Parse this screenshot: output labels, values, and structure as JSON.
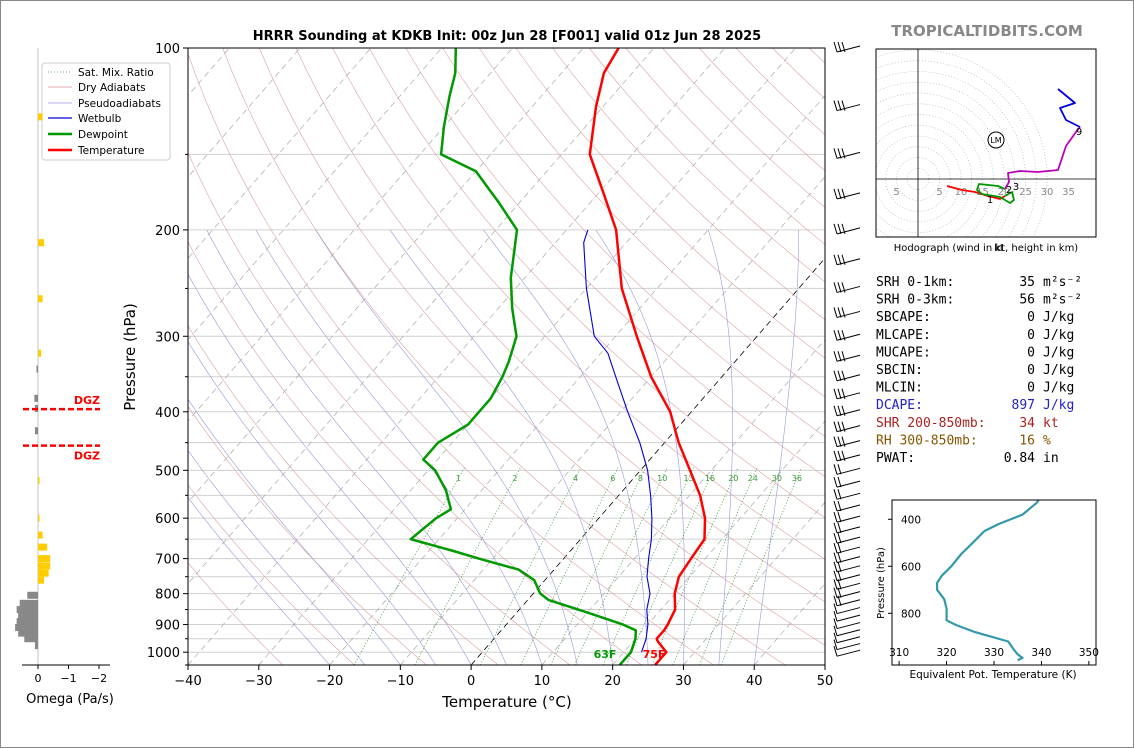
{
  "title": "HRRR Sounding at KDKB Init: 00z Jun 28 [F001] valid 01z Jun 28 2025",
  "brand": "TROPICALTIDBITS.COM",
  "chart_data": [
    {
      "type": "line",
      "name": "skew-t",
      "xlabel": "Temperature (°C)",
      "ylabel": "Pressure (hPa)",
      "xlim": [
        -40,
        50
      ],
      "ylim": [
        1050,
        100
      ],
      "yscale": "log",
      "skew": true,
      "x_ticks": [
        "−40",
        "−30",
        "−20",
        "−10",
        "0",
        "10",
        "20",
        "30",
        "40",
        "50"
      ],
      "y_ticks": [
        "100",
        "200",
        "300",
        "400",
        "500",
        "600",
        "700",
        "800",
        "900",
        "1000"
      ],
      "legend_position": "top-left",
      "legend": [
        "Sat. Mix. Ratio",
        "Dry Adiabats",
        "Pseudoadiabats",
        "Wetbulb",
        "Dewpoint",
        "Temperature"
      ],
      "mixing_ratio_labels": [
        "1",
        "2",
        "4",
        "6",
        "8",
        "10",
        "13",
        "16",
        "20",
        "24",
        "30",
        "36"
      ],
      "series": [
        {
          "name": "Temperature",
          "color": "#ff0000",
          "points": [
            [
              1050,
              26
            ],
            [
              1000,
              26
            ],
            [
              960,
              23.5
            ],
            [
              950,
              23
            ],
            [
              920,
              23
            ],
            [
              900,
              22.8
            ],
            [
              850,
              22
            ],
            [
              800,
              20
            ],
            [
              750,
              18.5
            ],
            [
              700,
              18
            ],
            [
              650,
              17.5
            ],
            [
              600,
              15
            ],
            [
              550,
              11.5
            ],
            [
              500,
              7
            ],
            [
              450,
              2
            ],
            [
              400,
              -3
            ],
            [
              350,
              -10
            ],
            [
              300,
              -17
            ],
            [
              250,
              -25
            ],
            [
              200,
              -33
            ],
            [
              175,
              -39
            ],
            [
              150,
              -46
            ],
            [
              125,
              -51
            ],
            [
              110,
              -54
            ],
            [
              100,
              -55
            ]
          ]
        },
        {
          "name": "Dewpoint",
          "color": "#009900",
          "points": [
            [
              1050,
              21
            ],
            [
              1000,
              21
            ],
            [
              950,
              20
            ],
            [
              920,
              19
            ],
            [
              900,
              16.5
            ],
            [
              860,
              10
            ],
            [
              820,
              3
            ],
            [
              800,
              1
            ],
            [
              760,
              -1.5
            ],
            [
              730,
              -5
            ],
            [
              700,
              -12
            ],
            [
              680,
              -16.5
            ],
            [
              650,
              -24
            ],
            [
              600,
              -23
            ],
            [
              580,
              -22
            ],
            [
              540,
              -25
            ],
            [
              500,
              -29
            ],
            [
              480,
              -32
            ],
            [
              450,
              -32
            ],
            [
              420,
              -30
            ],
            [
              380,
              -30
            ],
            [
              350,
              -31
            ],
            [
              330,
              -32
            ],
            [
              300,
              -34
            ],
            [
              270,
              -38
            ],
            [
              240,
              -42
            ],
            [
              200,
              -47
            ],
            [
              180,
              -53
            ],
            [
              160,
              -60
            ],
            [
              150,
              -67
            ],
            [
              135,
              -70
            ],
            [
              120,
              -73
            ],
            [
              110,
              -75
            ],
            [
              100,
              -78
            ]
          ]
        },
        {
          "name": "Wetbulb",
          "color": "#0000dd",
          "points": [
            [
              1000,
              22.5
            ],
            [
              950,
              21.5
            ],
            [
              900,
              20
            ],
            [
              850,
              18
            ],
            [
              800,
              16.5
            ],
            [
              750,
              14
            ],
            [
              700,
              12
            ],
            [
              650,
              10
            ],
            [
              600,
              7.5
            ],
            [
              550,
              4.5
            ],
            [
              500,
              1
            ],
            [
              450,
              -3.5
            ],
            [
              400,
              -9
            ],
            [
              350,
              -15
            ],
            [
              320,
              -19
            ],
            [
              300,
              -23
            ],
            [
              250,
              -30
            ],
            [
              210,
              -36
            ],
            [
              200,
              -37
            ]
          ]
        }
      ],
      "surface_labels": {
        "temperature": "75F",
        "dewpoint": "63F"
      }
    },
    {
      "type": "hodograph",
      "caption": "Hodograph (wind in kt, height in km)",
      "unit": "kt",
      "ring_labels": [
        "5",
        "5",
        "10",
        "15",
        "20",
        "25",
        "30",
        "35"
      ],
      "height_labels": [
        "1",
        "2",
        "3",
        "9"
      ],
      "storm_motion_label": "LM"
    },
    {
      "type": "line",
      "name": "theta-e",
      "xlabel": "Equivalent Pot. Temperature (K)",
      "ylabel": "Pressure (hPa)",
      "xlim": [
        310,
        350
      ],
      "x_ticks": [
        "310",
        "320",
        "330",
        "340",
        "350"
      ],
      "ylim": [
        1000,
        300
      ],
      "y_ticks": [
        "400",
        "600",
        "800"
      ],
      "series": [
        {
          "name": "theta-e",
          "color": "#3399aa",
          "points": [
            [
              1000,
              335
            ],
            [
              990,
              336
            ],
            [
              975,
              335
            ],
            [
              950,
              334
            ],
            [
              920,
              333
            ],
            [
              880,
              326
            ],
            [
              850,
              322
            ],
            [
              830,
              320
            ],
            [
              810,
              320
            ],
            [
              780,
              320
            ],
            [
              740,
              319.5
            ],
            [
              700,
              318
            ],
            [
              670,
              318
            ],
            [
              640,
              319
            ],
            [
              600,
              321
            ],
            [
              550,
              323
            ],
            [
              500,
              325.5
            ],
            [
              450,
              328
            ],
            [
              420,
              331
            ],
            [
              380,
              336
            ],
            [
              330,
              339
            ],
            [
              300,
              340
            ]
          ]
        }
      ]
    },
    {
      "type": "bar",
      "name": "omega",
      "xlabel": "Omega (Pa/s)",
      "x_ticks": [
        "0",
        "−1",
        "−2"
      ],
      "dgz_labels": [
        "DGZ",
        "DGZ"
      ],
      "dgz_levels_hpa": [
        396,
        455
      ]
    }
  ],
  "indices": [
    {
      "label": "SRH 0-1km:",
      "value": "35",
      "unit": "m²s⁻²",
      "color": "#000000"
    },
    {
      "label": "SRH 0-3km:",
      "value": "56",
      "unit": "m²s⁻²",
      "color": "#000000"
    },
    {
      "label": "SBCAPE:",
      "value": "0",
      "unit": "J/kg",
      "color": "#000000"
    },
    {
      "label": "MLCAPE:",
      "value": "0",
      "unit": "J/kg",
      "color": "#000000"
    },
    {
      "label": "MUCAPE:",
      "value": "0",
      "unit": "J/kg",
      "color": "#000000"
    },
    {
      "label": "SBCIN:",
      "value": "0",
      "unit": "J/kg",
      "color": "#000000"
    },
    {
      "label": "MLCIN:",
      "value": "0",
      "unit": "J/kg",
      "color": "#000000"
    },
    {
      "label": "DCAPE:",
      "value": "897",
      "unit": "J/kg",
      "color": "#2222cc"
    },
    {
      "label": "SHR 200-850mb:",
      "value": "34",
      "unit": "kt",
      "color": "#aa2222"
    },
    {
      "label": "RH 300-850mb:",
      "value": "16",
      "unit": "%",
      "color": "#885500"
    },
    {
      "label": "PWAT:",
      "value": "0.84",
      "unit": "in",
      "color": "#000000"
    }
  ]
}
